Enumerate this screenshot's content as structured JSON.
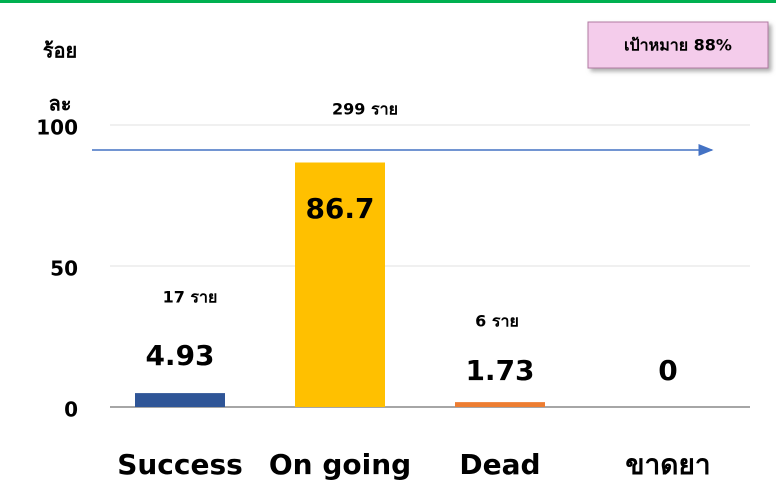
{
  "chart_data": {
    "type": "bar",
    "ylabel": [
      "ร้อย",
      "ละ"
    ],
    "categories": [
      "Success",
      "On going",
      "Dead",
      "ขาดยา"
    ],
    "values": [
      4.93,
      86.7,
      1.73,
      0
    ],
    "colors": [
      "#2f5597",
      "#ffc000",
      "#ed7d31",
      "#a5a5a5"
    ],
    "ylim": [
      0,
      100
    ],
    "yticks": [
      0,
      50,
      100
    ],
    "grid": true,
    "annotations": [
      "299 ราย",
      "17 ราย",
      "6 ราย"
    ],
    "target_label": "เป้าหมาย 88%"
  }
}
